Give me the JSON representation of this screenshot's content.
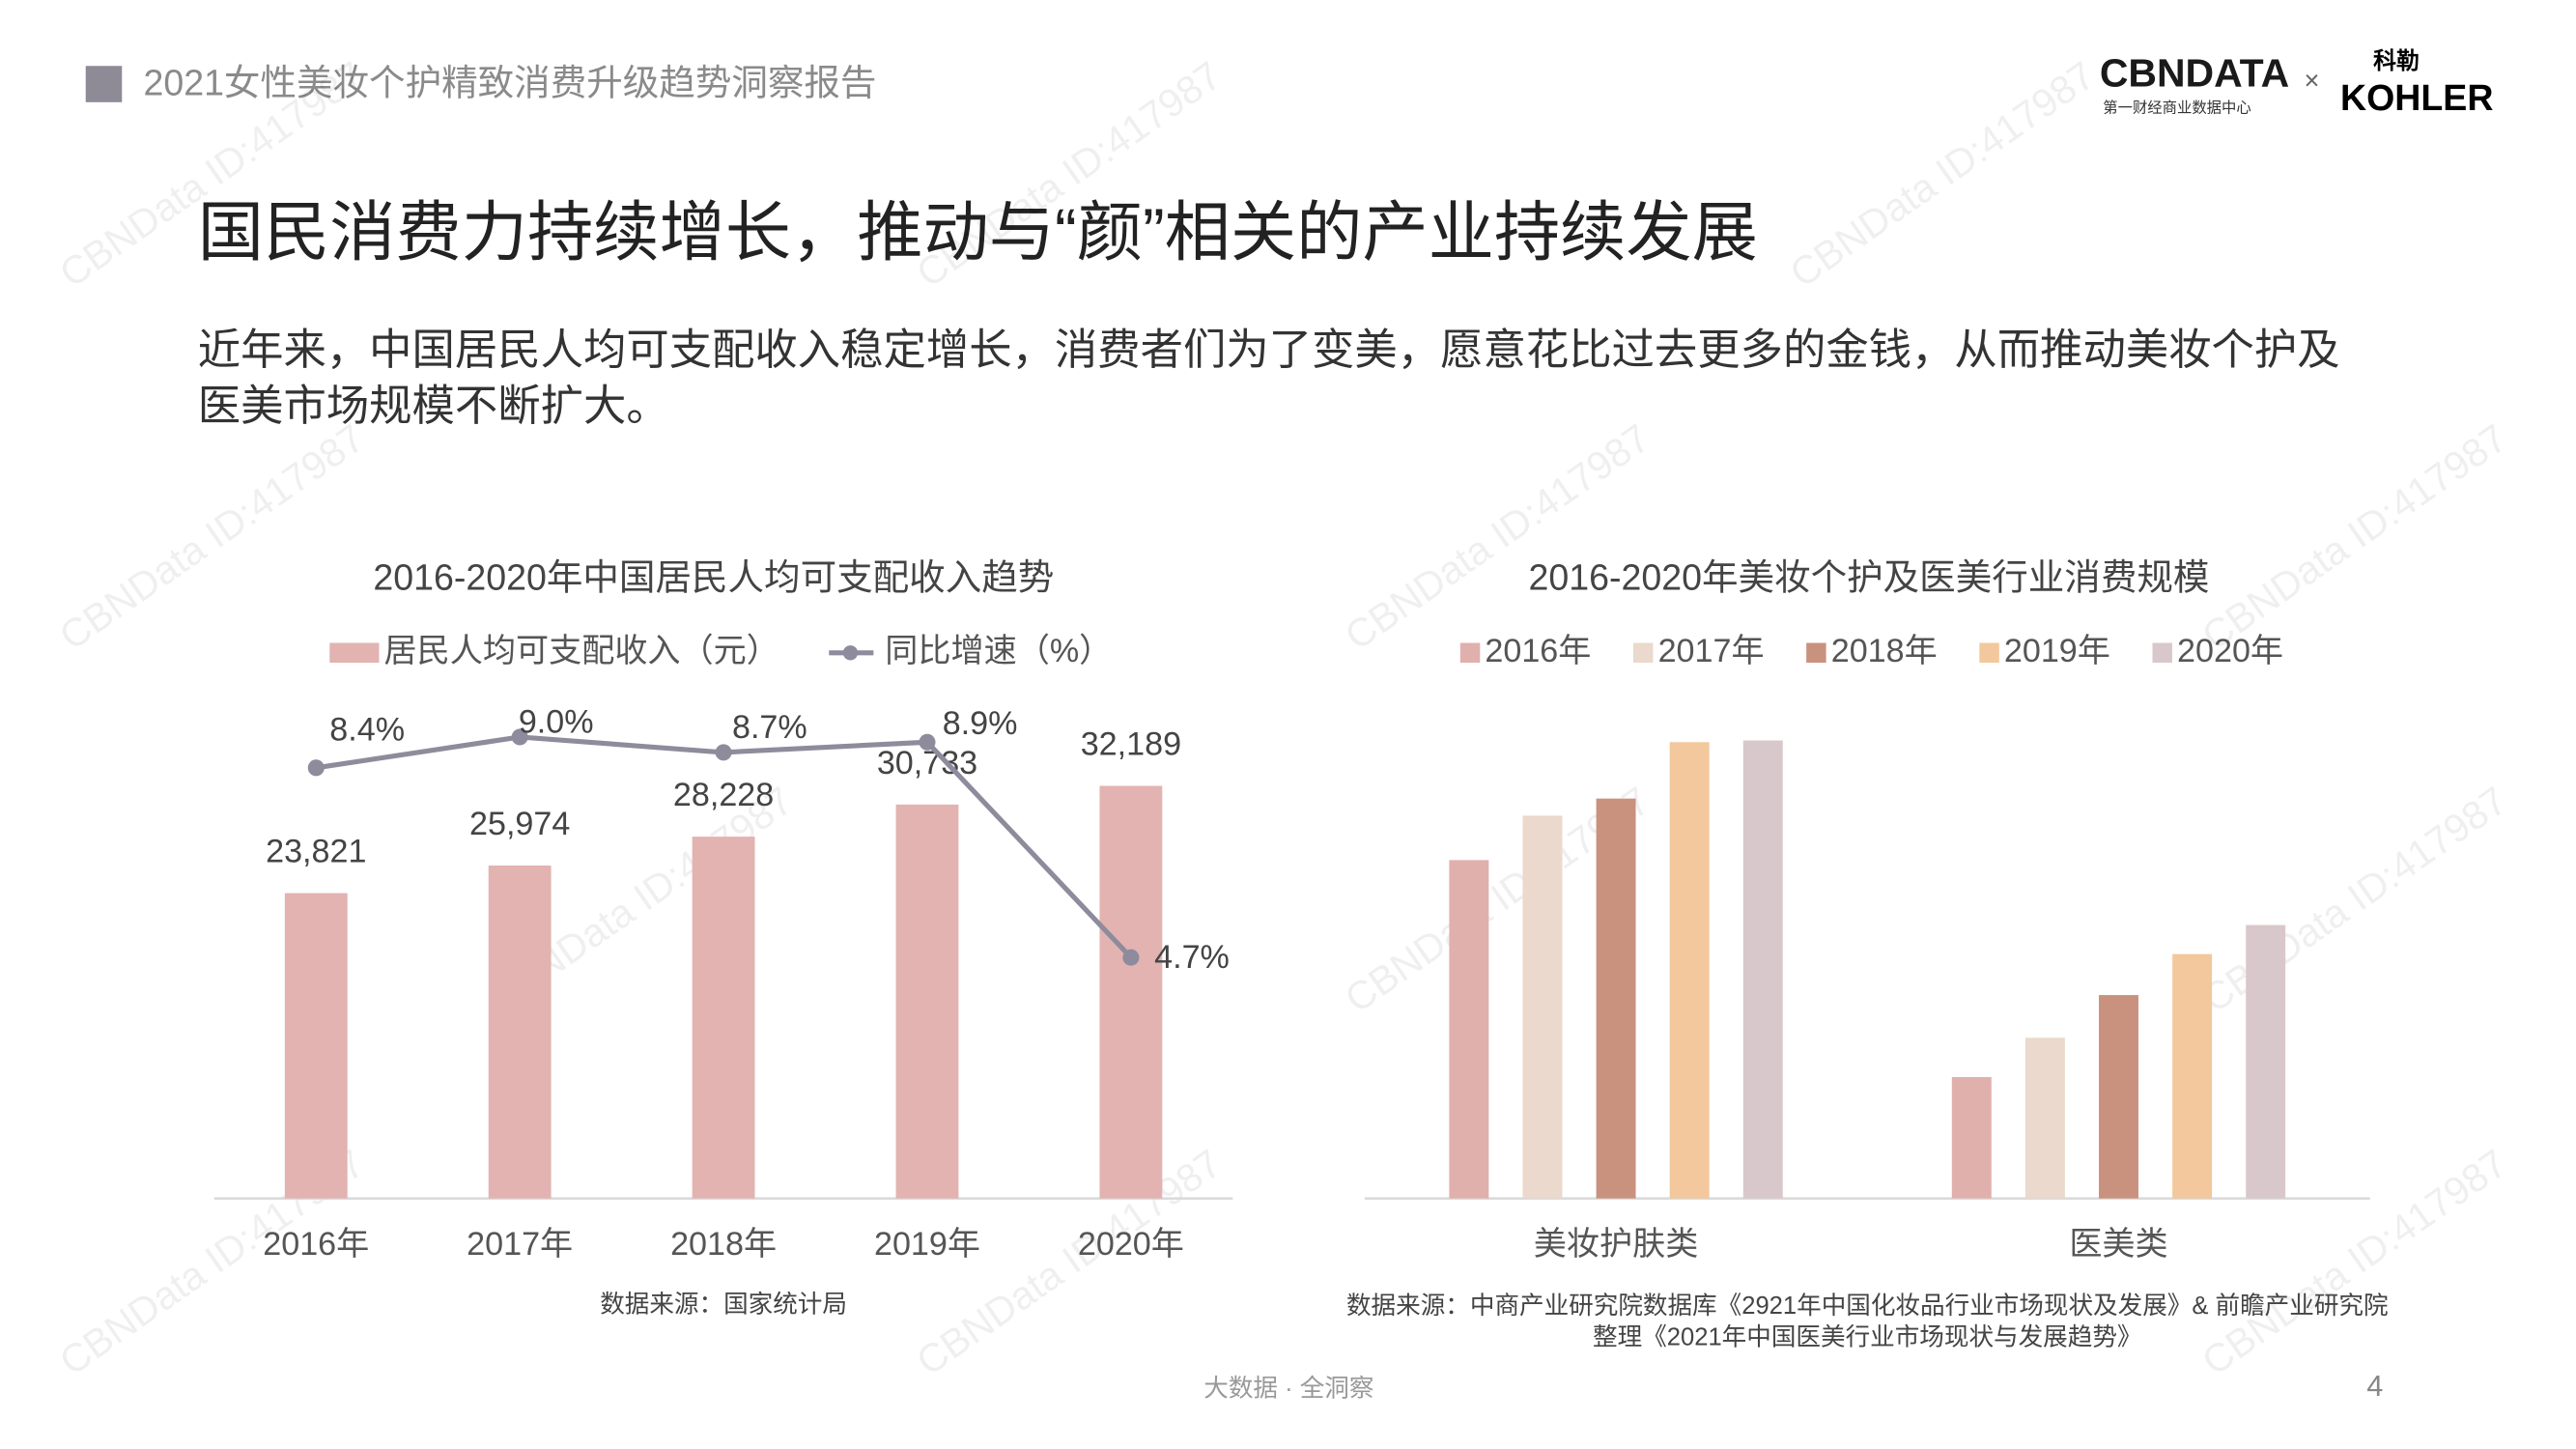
{
  "header": {
    "title": "2021女性美妆个护精致消费升级趋势洞察报告",
    "logo_main": "CBNDATA",
    "logo_sub": "第一财经商业数据中心",
    "logo_cross": "×",
    "partner_cn": "科勒",
    "partner_en": "KOHLER"
  },
  "watermark": "CBNData ID:417987",
  "title": "国民消费力持续增长，推动与“颜”相关的产业持续发展",
  "body": {
    "lines": [
      "近年来，中国居民人均可支配收入稳定增长，消费者们为了变美，愿意花比过去更多的金钱，从而推动美妆个护及",
      "医美市场规模不断扩大。"
    ]
  },
  "chart_data": [
    {
      "type": "bar",
      "title": "2016-2020年中国居民人均可支配收入趋势",
      "categories": [
        "2016年",
        "2017年",
        "2018年",
        "2019年",
        "2020年"
      ],
      "series": [
        {
          "name": "居民人均可支配收入（元）",
          "type": "bar",
          "color": "#e2b3b1",
          "values": [
            23821,
            25974,
            28228,
            30733,
            32189
          ],
          "value_labels": [
            "23,821",
            "25,974",
            "28,228",
            "30,733",
            "32,189"
          ]
        },
        {
          "name": "同比增速（%）",
          "type": "line",
          "axis": "y2",
          "color": "#8e8b9c",
          "values": [
            8.4,
            9.0,
            8.7,
            8.9,
            4.7
          ],
          "value_labels": [
            "8.4%",
            "9.0%",
            "8.7%",
            "8.9%",
            "4.7%"
          ]
        }
      ],
      "ylim": [
        0,
        40000
      ],
      "y2lim": [
        0,
        10
      ],
      "grid": false,
      "legend": "top",
      "source": [
        "数据来源：国家统计局"
      ]
    },
    {
      "type": "bar",
      "title": "2016-2020年美妆个护及医美行业消费规模",
      "categories": [
        "美妆护肤类",
        "医美类"
      ],
      "series": [
        {
          "name": "2016年",
          "color": "#e0b0ad",
          "values": [
            198,
            71
          ]
        },
        {
          "name": "2017年",
          "color": "#ead9cc",
          "values": [
            224,
            94
          ]
        },
        {
          "name": "2018年",
          "color": "#c9927f",
          "values": [
            234,
            119
          ]
        },
        {
          "name": "2019年",
          "color": "#f2c89c",
          "values": [
            267,
            143
          ]
        },
        {
          "name": "2020年",
          "color": "#d9c8cb",
          "values": [
            268,
            160
          ]
        }
      ],
      "ylim": [
        0,
        300
      ],
      "grid": false,
      "legend": "top",
      "source": [
        "数据来源：中商产业研究院数据库《2921年中国化妆品行业市场现状及发展》& 前瞻产业研究院",
        "整理《2021年中国医美行业市场现状与发展趋势》"
      ]
    }
  ],
  "footer": {
    "slogan": "大数据 · 全洞察",
    "page": "4"
  }
}
